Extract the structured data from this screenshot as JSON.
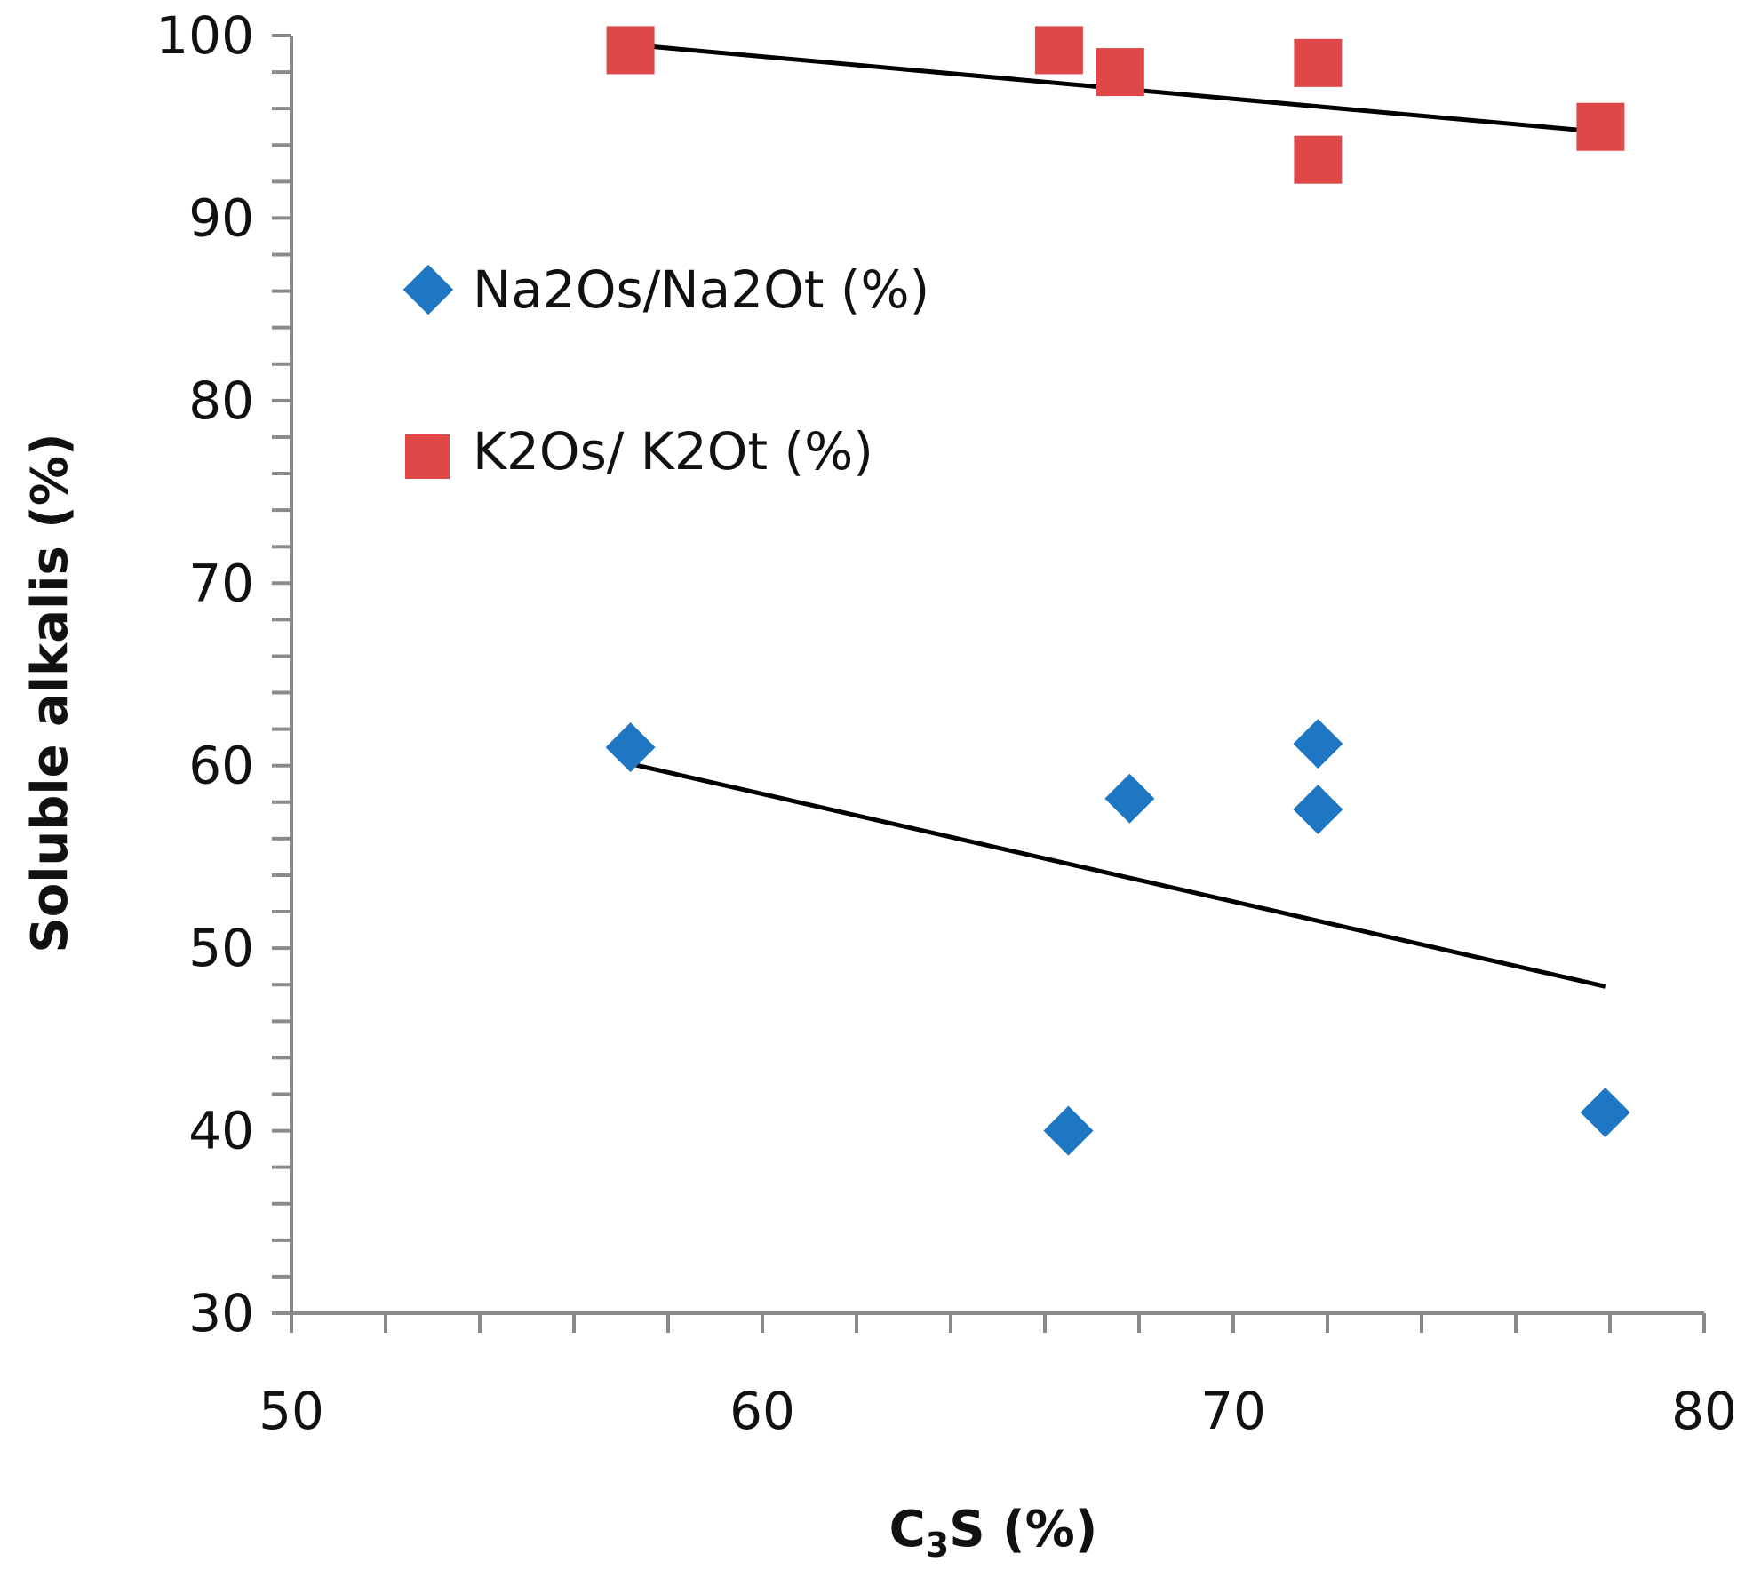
{
  "chart_data": {
    "type": "scatter",
    "title": "",
    "xlabel": "C₃S (%)",
    "xlabel_main": "C",
    "xlabel_sub": "3",
    "xlabel_rest": "S (%)",
    "ylabel": "Soluble alkalis  (%)",
    "xlim": [
      50,
      80
    ],
    "ylim": [
      30,
      100
    ],
    "x_ticks": [
      50,
      60,
      70,
      80
    ],
    "y_ticks": [
      30,
      40,
      50,
      60,
      70,
      80,
      90,
      100
    ],
    "grid": false,
    "legend_position": "center-left",
    "series": [
      {
        "name": "Na2Os/Na2Ot (%)",
        "marker": "diamond",
        "color": "#1F77C4",
        "points": [
          {
            "x": 57.2,
            "y": 61.0
          },
          {
            "x": 66.5,
            "y": 40.0
          },
          {
            "x": 67.8,
            "y": 58.2
          },
          {
            "x": 71.8,
            "y": 61.2
          },
          {
            "x": 71.8,
            "y": 57.6
          },
          {
            "x": 77.9,
            "y": 41.0
          }
        ],
        "trendline": {
          "x": [
            57.2,
            77.9
          ],
          "y": [
            60.1,
            47.9
          ]
        }
      },
      {
        "name": "K2Os/ K2Ot (%)",
        "marker": "square",
        "color": "#E04848",
        "points": [
          {
            "x": 57.2,
            "y": 99.2
          },
          {
            "x": 66.3,
            "y": 99.2
          },
          {
            "x": 67.6,
            "y": 98.0
          },
          {
            "x": 71.8,
            "y": 98.5
          },
          {
            "x": 71.8,
            "y": 93.2
          },
          {
            "x": 77.8,
            "y": 95.0
          }
        ],
        "trendline": {
          "x": [
            57.2,
            77.9
          ],
          "y": [
            99.5,
            94.7
          ]
        }
      }
    ]
  }
}
